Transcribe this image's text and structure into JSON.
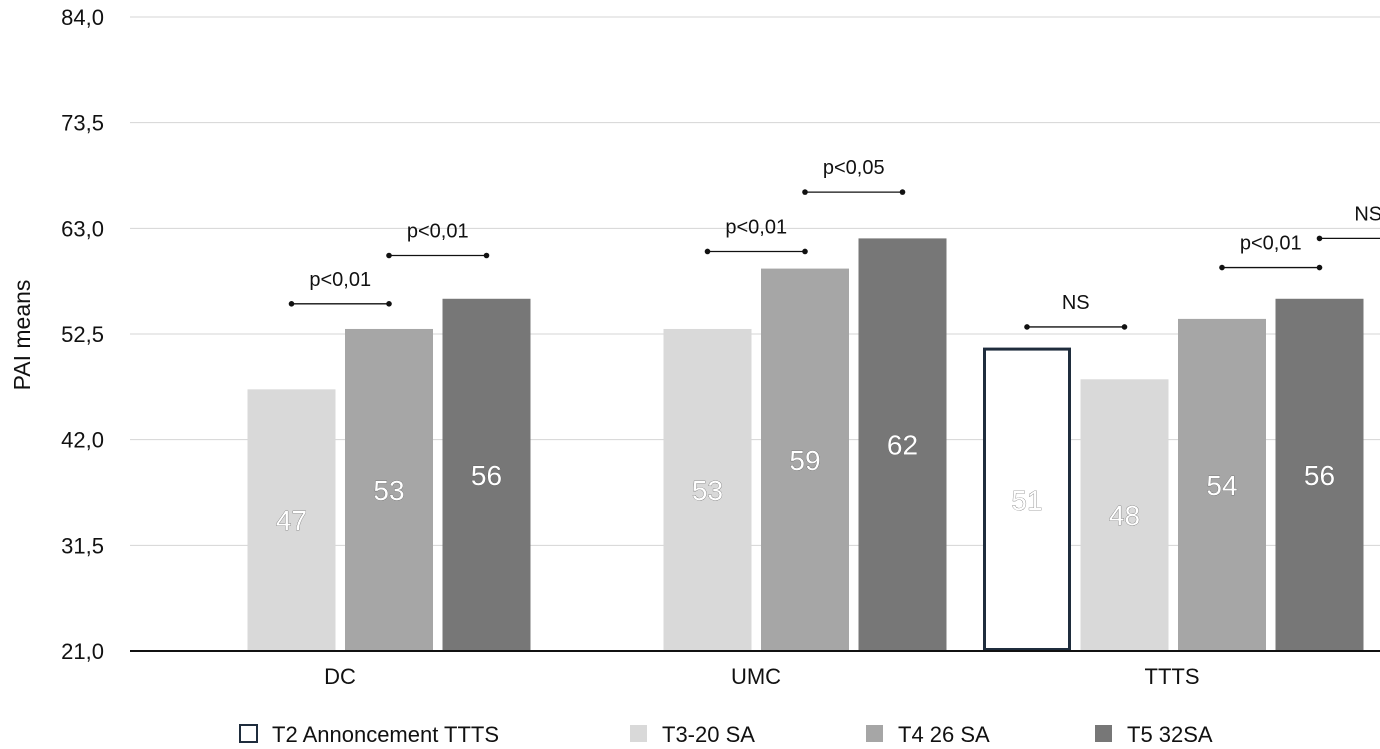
{
  "chart_data": {
    "type": "bar",
    "ylabel": "PAI means",
    "ylim": [
      21.0,
      84.0
    ],
    "yticks": [
      "21,0",
      "31,5",
      "42,0",
      "52,5",
      "63,0",
      "73,5",
      "84,0"
    ],
    "ytick_values": [
      21.0,
      31.5,
      42.0,
      52.5,
      63.0,
      73.5,
      84.0
    ],
    "grid": true,
    "legend_position": "bottom",
    "categories": [
      "DC",
      "UMC",
      "TTTS"
    ],
    "series": [
      {
        "name": "T2 Annoncement TTTS",
        "color": "#ffffff",
        "outline": "#1f2d3d",
        "values": [
          null,
          null,
          51
        ]
      },
      {
        "name": "T3-20 SA",
        "color": "#d9d9d9",
        "values": [
          47,
          53,
          48
        ]
      },
      {
        "name": "T4 26 SA",
        "color": "#a6a6a6",
        "values": [
          53,
          59,
          54
        ]
      },
      {
        "name": "T5 32SA",
        "color": "#777777",
        "values": [
          56,
          62,
          56
        ]
      }
    ],
    "data_labels": [
      [
        "",
        "",
        "51"
      ],
      [
        "47",
        "53",
        "48"
      ],
      [
        "53",
        "59",
        "54"
      ],
      [
        "56",
        "62",
        "56"
      ]
    ],
    "significance": [
      {
        "category": 0,
        "from_series": 1,
        "to_series": 2,
        "label": "p<0,01",
        "level": 55.5
      },
      {
        "category": 0,
        "from_series": 2,
        "to_series": 3,
        "label": "p<0,01",
        "level": 60.3
      },
      {
        "category": 1,
        "from_series": 1,
        "to_series": 2,
        "label": "p<0,01",
        "level": 60.7
      },
      {
        "category": 1,
        "from_series": 2,
        "to_series": 3,
        "label": "p<0,05",
        "level": 66.6
      },
      {
        "category": 2,
        "from_series": 0,
        "to_series": 1,
        "label": "NS",
        "level": 53.2
      },
      {
        "category": 2,
        "from_series": 2,
        "to_series": 3,
        "label": "p<0,01",
        "level": 59.1
      },
      {
        "category": 2,
        "from_series": 3,
        "to_series": 4,
        "label": "NS",
        "level": 62.0
      }
    ]
  }
}
